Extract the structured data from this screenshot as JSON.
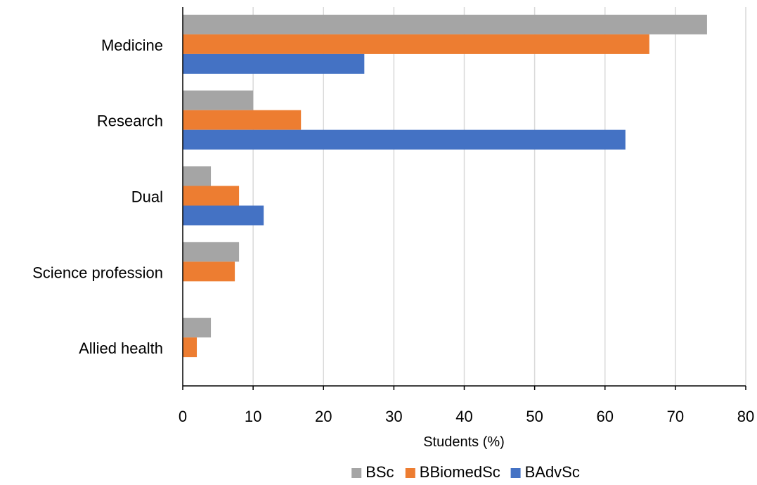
{
  "chart_data": {
    "type": "bar",
    "orientation": "horizontal",
    "categories": [
      "Medicine",
      "Research",
      "Dual",
      "Science profession",
      "Allied health"
    ],
    "series": [
      {
        "name": "BSc",
        "color": "#a5a5a5",
        "values": [
          74.5,
          10,
          4,
          8,
          4
        ]
      },
      {
        "name": "BBiomedSc",
        "color": "#ed7d31",
        "values": [
          66.3,
          16.8,
          8,
          7.4,
          2
        ]
      },
      {
        "name": "BAdvSc",
        "color": "#4472c4",
        "values": [
          25.8,
          62.9,
          11.5,
          0,
          0
        ]
      }
    ],
    "xlabel": "Students (%)",
    "ylabel": "",
    "title": "",
    "xlim": [
      0,
      80
    ],
    "xticks": [
      0,
      10,
      20,
      30,
      40,
      50,
      60,
      70,
      80
    ],
    "grid": "vertical",
    "legend_position": "bottom",
    "gridline_color": "#d9d9d9"
  }
}
